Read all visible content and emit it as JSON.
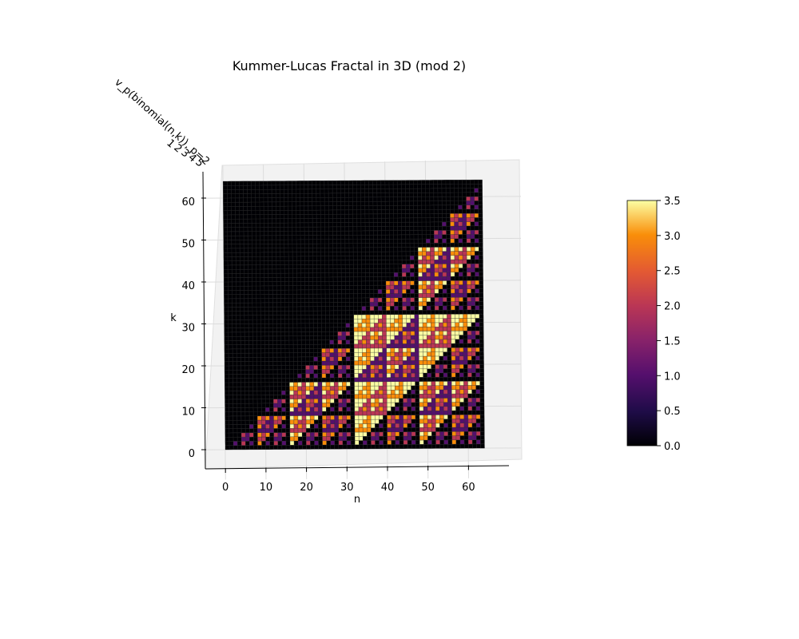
{
  "chart_data": {
    "type": "surface",
    "title": "Kummer-Lucas Fractal in 3D (mod 2)",
    "xlabel": "n",
    "ylabel": "k",
    "zlabel": "v_p(binomial(n,k)), p=2",
    "n_range": [
      0,
      63
    ],
    "k_range": [
      0,
      63
    ],
    "z_definition": "2-adic valuation of binomial(n,k), zero where k > n",
    "x_ticks": [
      "0",
      "10",
      "20",
      "30",
      "40",
      "50",
      "60"
    ],
    "y_ticks": [
      "0",
      "10",
      "20",
      "30",
      "40",
      "50",
      "60"
    ],
    "z_ticks_partial": [
      "1",
      "2",
      "3",
      "4",
      "5"
    ],
    "colormap": "inferno",
    "colorbar": {
      "range": [
        0,
        3.5
      ],
      "ticks": [
        "0.0",
        "0.5",
        "1.0",
        "1.5",
        "2.0",
        "2.5",
        "3.0",
        "3.5"
      ]
    },
    "grid": true,
    "view": "looking down the z axis (top-down)"
  }
}
